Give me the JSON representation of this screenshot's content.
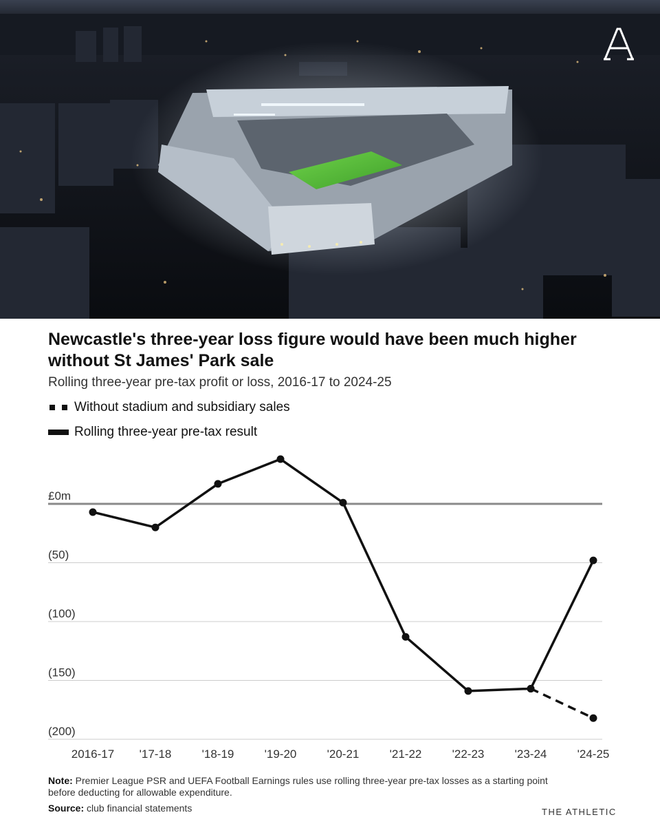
{
  "brand": {
    "name": "THE ATHLETIC"
  },
  "hero": {
    "description_icon": "stadium-aerial-photo",
    "logo_icon": "athletic-a-logo"
  },
  "header": {
    "title": "Newcastle's three-year loss figure would have been much higher without St James' Park sale",
    "subtitle": "Rolling three-year pre-tax profit or loss, 2016-17 to 2024-25"
  },
  "legend": {
    "dashed": "Without stadium and subsidiary sales",
    "solid": "Rolling three-year pre-tax result"
  },
  "footer": {
    "note_label": "Note:",
    "note_text": "Premier League PSR and UEFA Football Earnings rules use rolling three-year pre-tax losses as a starting point before deducting for allowable expenditure.",
    "source_label": "Source:",
    "source_text": "club financial statements"
  },
  "colors": {
    "line": "#111111",
    "zero_line": "#8a8a8a",
    "grid": "#cccccc"
  },
  "chart_data": {
    "type": "line",
    "categories": [
      "2016-17",
      "'17-18",
      "'18-19",
      "'19-20",
      "'20-21",
      "'21-22",
      "'22-23",
      "'23-24",
      "'24-25"
    ],
    "y_tick_labels": [
      "£0m",
      "(50)",
      "(100)",
      "(150)",
      "(200)"
    ],
    "y_ticks": [
      0,
      -50,
      -100,
      -150,
      -200
    ],
    "ylim": [
      -200,
      38
    ],
    "grid": true,
    "legend_position": "top-left",
    "series": [
      {
        "name": "Rolling three-year pre-tax result",
        "style": "solid",
        "values": [
          -7,
          -20,
          17,
          38,
          1,
          -113,
          -159,
          -157,
          -48
        ]
      },
      {
        "name": "Without stadium and subsidiary sales",
        "style": "dashed",
        "values": [
          null,
          null,
          null,
          null,
          null,
          null,
          null,
          -157,
          -182
        ]
      }
    ]
  }
}
